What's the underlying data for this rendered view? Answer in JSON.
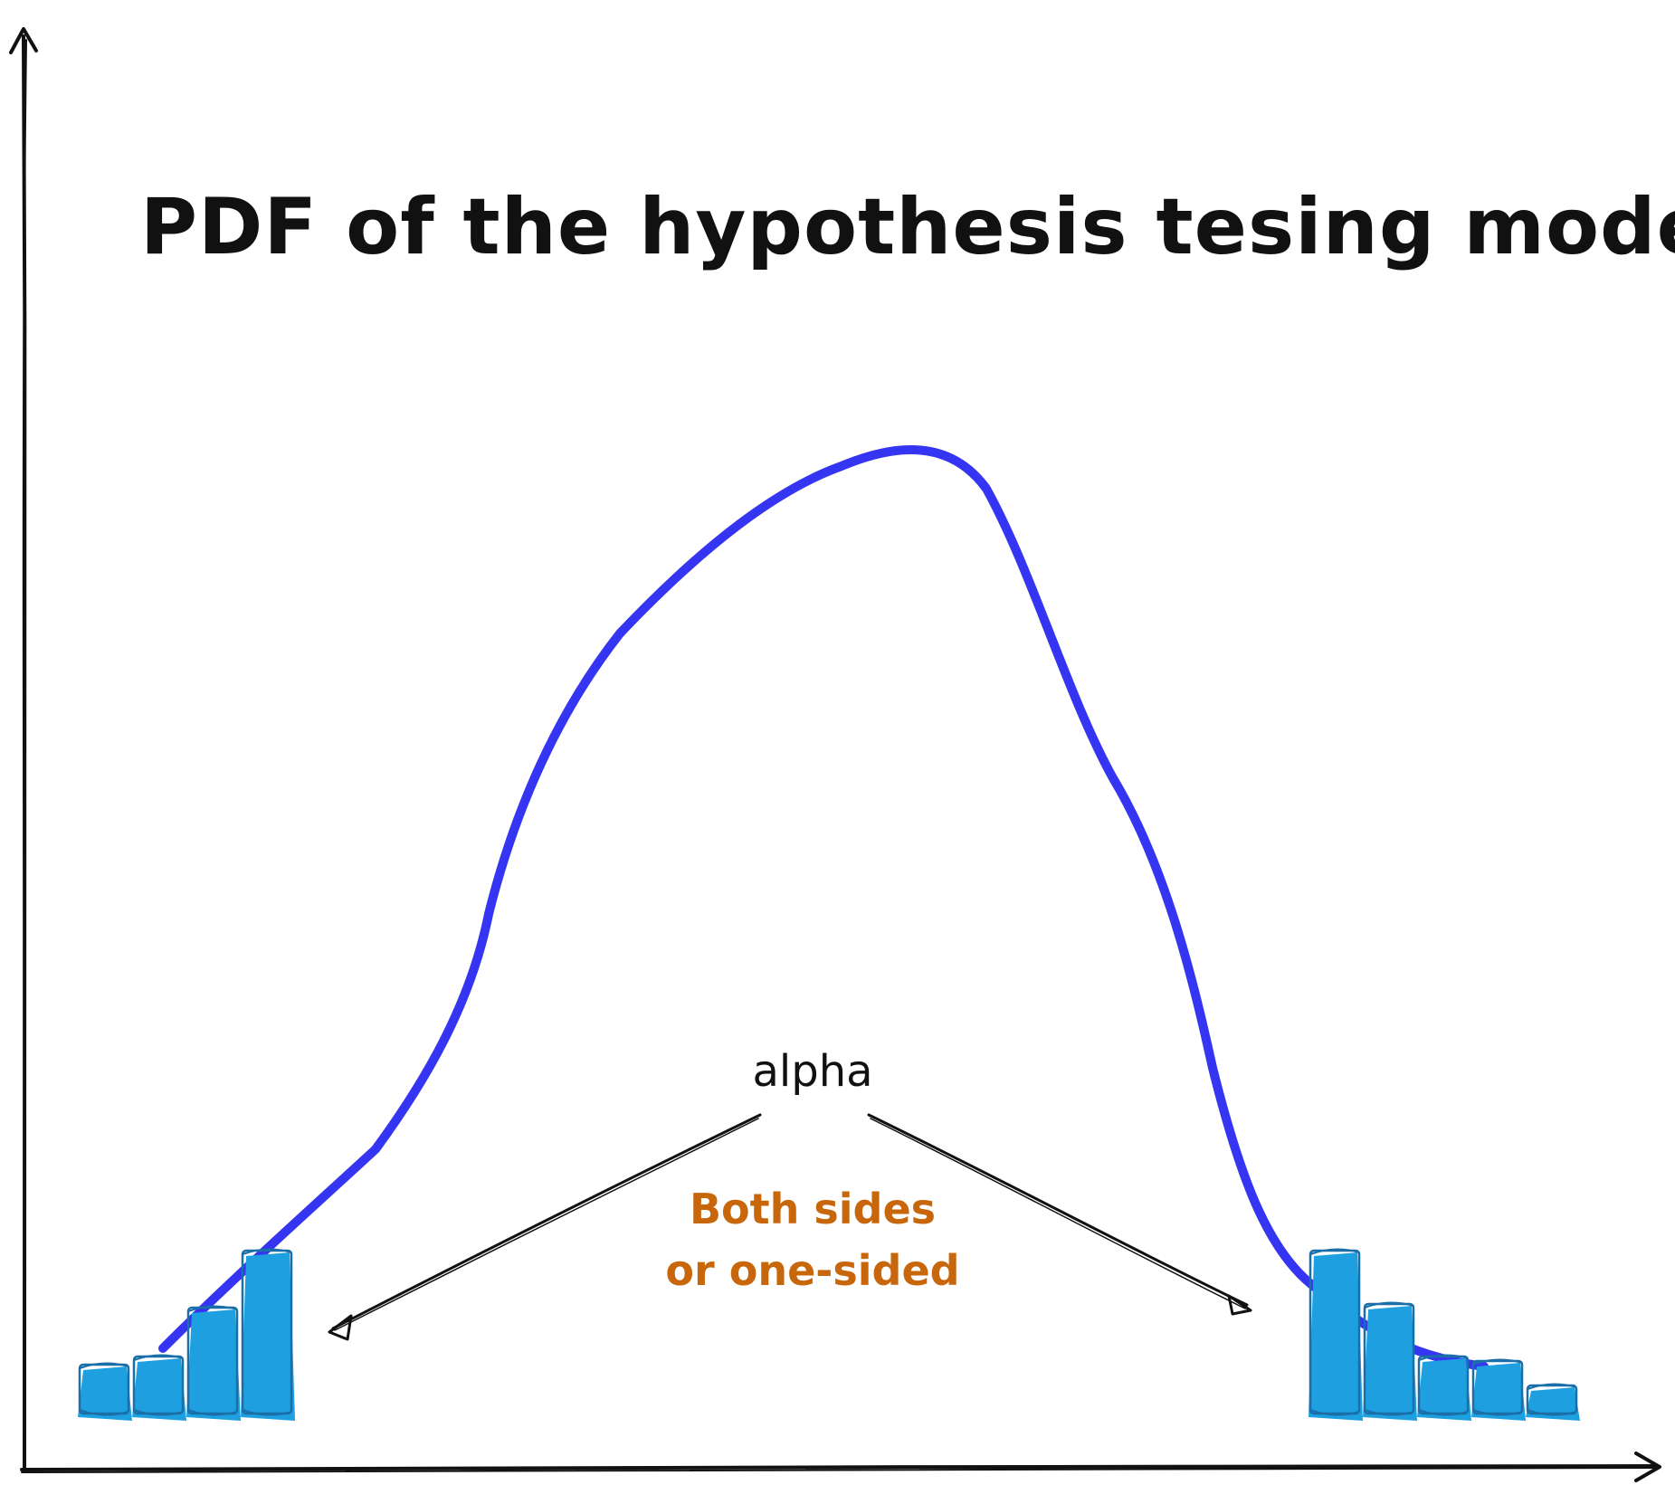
{
  "title": "PDF of the hypothesis tesing model",
  "alpha_label": "alpha",
  "note": {
    "line1": "Both sides",
    "line2": "or one-sided"
  },
  "colors": {
    "curve": "#3535f2",
    "bar_fill": "#1ea0e0",
    "bar_stroke": "#1a6fa8",
    "note": "#c8660b",
    "ink": "#111111"
  },
  "icons": {
    "y_axis": "arrow-up-icon",
    "x_axis": "arrow-right-icon"
  },
  "left_tail_bars": [
    0.3,
    0.35,
    0.65,
    1.0
  ],
  "right_tail_bars": [
    1.0,
    0.67,
    0.35,
    0.32,
    0.17
  ]
}
